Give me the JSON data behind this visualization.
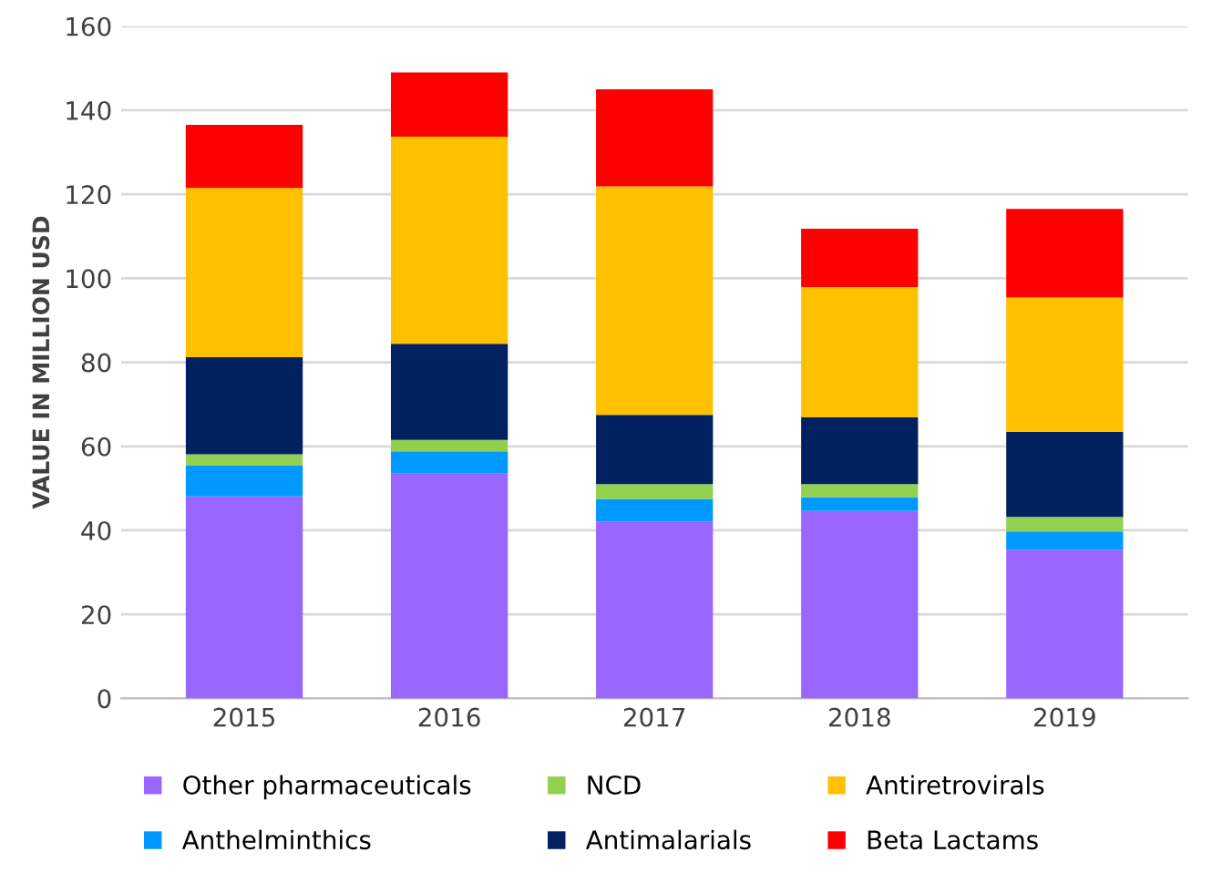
{
  "chart_data": {
    "type": "bar",
    "stacked": true,
    "ylabel": "VALUE IN MILLION USD",
    "categories": [
      "2015",
      "2016",
      "2017",
      "2018",
      "2019"
    ],
    "series": [
      {
        "name": "Other pharmaceuticals",
        "color": "#9966ff",
        "values": [
          48.1,
          53.5,
          42.1,
          44.6,
          35.4
        ]
      },
      {
        "name": "Anthelminthics",
        "color": "#0099ff",
        "values": [
          7.3,
          5.3,
          5.4,
          3.3,
          4.3
        ]
      },
      {
        "name": "NCD",
        "color": "#92d050",
        "values": [
          2.7,
          2.7,
          3.5,
          3.1,
          3.5
        ]
      },
      {
        "name": "Antimalarials",
        "color": "#002060",
        "values": [
          23.1,
          22.9,
          16.5,
          15.9,
          20.3
        ]
      },
      {
        "name": "Antiretrovirals",
        "color": "#ffc000",
        "values": [
          40.3,
          49.3,
          54.4,
          31.0,
          31.9
        ]
      },
      {
        "name": "Beta Lactams",
        "color": "#ff0000",
        "values": [
          15.0,
          15.3,
          23.1,
          13.9,
          21.1
        ]
      }
    ],
    "ylim": [
      0,
      160
    ],
    "yticks": [
      0,
      20,
      40,
      60,
      80,
      100,
      120,
      140,
      160
    ],
    "grid": "y",
    "legend": "bottom"
  }
}
